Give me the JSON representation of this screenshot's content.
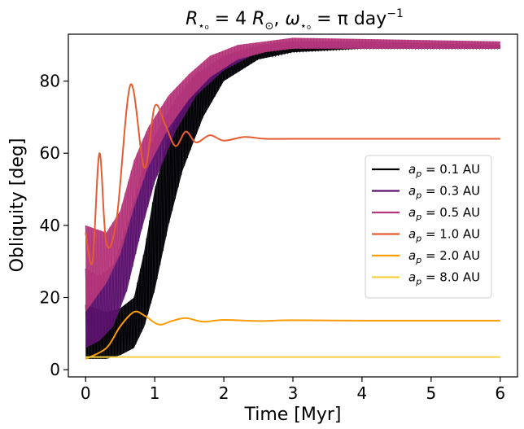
{
  "chart_data": {
    "type": "line",
    "title_parts": {
      "r_sym": "R",
      "r_sub": "⋆₀",
      "r_eq": " = 4 ",
      "r_unit": "R",
      "r_unit_sub": "⊙",
      "sep": ",  ",
      "w_sym": "ω",
      "w_sub": "⋆₀",
      "w_eq": " = π day",
      "w_exp": "−1"
    },
    "xlabel": "Time [Myr]",
    "ylabel": "Obliquity [deg]",
    "xlim": [
      -0.25,
      6.25
    ],
    "ylim": [
      -2,
      93
    ],
    "xticks": [
      0,
      1,
      2,
      3,
      4,
      5,
      6
    ],
    "yticks": [
      0,
      20,
      40,
      60,
      80
    ],
    "grid": false,
    "legend_position": "center-right",
    "series": [
      {
        "name": "0.1 AU",
        "color": "#000004",
        "kind": "band",
        "lower": [
          [
            0.0,
            3
          ],
          [
            0.3,
            3
          ],
          [
            0.5,
            4
          ],
          [
            0.7,
            6
          ],
          [
            0.85,
            12
          ],
          [
            1.0,
            22
          ],
          [
            1.2,
            40
          ],
          [
            1.4,
            55
          ],
          [
            1.7,
            70
          ],
          [
            2.0,
            80
          ],
          [
            2.5,
            86
          ],
          [
            3.0,
            88
          ],
          [
            4.0,
            89
          ],
          [
            5.0,
            89
          ],
          [
            6.0,
            89
          ]
        ],
        "upper": [
          [
            0.0,
            18
          ],
          [
            0.3,
            16
          ],
          [
            0.5,
            17
          ],
          [
            0.7,
            20
          ],
          [
            0.85,
            33
          ],
          [
            1.0,
            50
          ],
          [
            1.2,
            65
          ],
          [
            1.4,
            74
          ],
          [
            1.7,
            80
          ],
          [
            2.0,
            84
          ],
          [
            2.5,
            88
          ],
          [
            3.0,
            89
          ],
          [
            4.0,
            90
          ],
          [
            5.0,
            90
          ],
          [
            6.0,
            90
          ]
        ]
      },
      {
        "name": "0.3 AU",
        "color": "#5c126e",
        "kind": "band",
        "lower": [
          [
            0.0,
            6
          ],
          [
            0.2,
            8
          ],
          [
            0.4,
            12
          ],
          [
            0.6,
            22
          ],
          [
            0.8,
            38
          ],
          [
            1.0,
            52
          ],
          [
            1.3,
            66
          ],
          [
            1.6,
            76
          ],
          [
            2.0,
            83
          ],
          [
            2.5,
            88
          ],
          [
            3.0,
            89
          ],
          [
            4.0,
            89
          ],
          [
            6.0,
            89
          ]
        ],
        "upper": [
          [
            0.0,
            28
          ],
          [
            0.2,
            26
          ],
          [
            0.4,
            29
          ],
          [
            0.6,
            40
          ],
          [
            0.8,
            54
          ],
          [
            1.0,
            65
          ],
          [
            1.3,
            75
          ],
          [
            1.6,
            82
          ],
          [
            2.0,
            87
          ],
          [
            2.5,
            90
          ],
          [
            3.0,
            91
          ],
          [
            4.0,
            91
          ],
          [
            6.0,
            90
          ]
        ]
      },
      {
        "name": "0.5 AU",
        "color": "#b5367a",
        "kind": "band",
        "lower": [
          [
            0.0,
            16
          ],
          [
            0.3,
            24
          ],
          [
            0.5,
            32
          ],
          [
            0.7,
            45
          ],
          [
            0.9,
            56
          ],
          [
            1.2,
            67
          ],
          [
            1.5,
            75
          ],
          [
            1.8,
            81
          ],
          [
            2.2,
            86
          ],
          [
            2.6,
            88
          ],
          [
            3.0,
            89
          ],
          [
            6.0,
            89
          ]
        ],
        "upper": [
          [
            0.0,
            40
          ],
          [
            0.3,
            38
          ],
          [
            0.5,
            44
          ],
          [
            0.7,
            58
          ],
          [
            0.9,
            67
          ],
          [
            1.2,
            76
          ],
          [
            1.5,
            82
          ],
          [
            1.8,
            87
          ],
          [
            2.2,
            90
          ],
          [
            2.6,
            91
          ],
          [
            3.0,
            92
          ],
          [
            6.0,
            91
          ]
        ]
      },
      {
        "name": "1.0 AU",
        "color": "#e55c30",
        "kind": "line",
        "points": [
          [
            0.0,
            38
          ],
          [
            0.1,
            30
          ],
          [
            0.2,
            60
          ],
          [
            0.3,
            35
          ],
          [
            0.45,
            42
          ],
          [
            0.65,
            79
          ],
          [
            0.85,
            56
          ],
          [
            1.0,
            73
          ],
          [
            1.15,
            68
          ],
          [
            1.3,
            62
          ],
          [
            1.45,
            66
          ],
          [
            1.6,
            63
          ],
          [
            1.8,
            65
          ],
          [
            2.0,
            63.5
          ],
          [
            2.3,
            64.5
          ],
          [
            2.6,
            64
          ],
          [
            3.0,
            64
          ],
          [
            4.0,
            64
          ],
          [
            5.0,
            64
          ],
          [
            6.0,
            64
          ]
        ]
      },
      {
        "name": "2.0 AU",
        "color": "#fb9b06",
        "kind": "line",
        "points": [
          [
            0.0,
            3
          ],
          [
            0.3,
            6
          ],
          [
            0.5,
            12
          ],
          [
            0.7,
            16
          ],
          [
            0.85,
            15
          ],
          [
            1.0,
            13
          ],
          [
            1.1,
            12.5
          ],
          [
            1.25,
            13.5
          ],
          [
            1.45,
            14.3
          ],
          [
            1.7,
            13.3
          ],
          [
            2.0,
            13.8
          ],
          [
            2.5,
            13.5
          ],
          [
            3.0,
            13.7
          ],
          [
            4.0,
            13.6
          ],
          [
            5.0,
            13.6
          ],
          [
            6.0,
            13.6
          ]
        ]
      },
      {
        "name": "8.0 AU",
        "color": "#f7d13d",
        "kind": "line",
        "points": [
          [
            0.0,
            3.5
          ],
          [
            6.0,
            3.5
          ]
        ]
      }
    ]
  }
}
